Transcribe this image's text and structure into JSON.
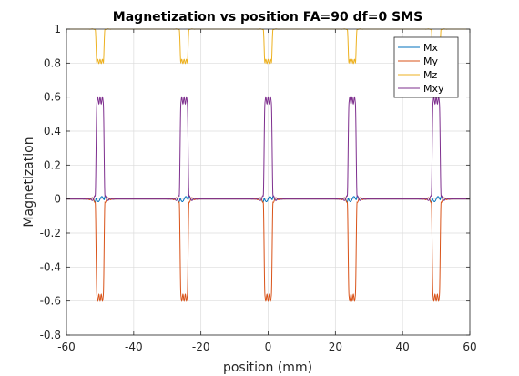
{
  "chart_data": {
    "type": "line",
    "title": "Magnetization vs position FA=90 df=0 SMS",
    "xlabel": "position (mm)",
    "ylabel": "Magnetization",
    "xlim": [
      -60,
      60
    ],
    "ylim": [
      -0.8,
      1
    ],
    "x_ticks": [
      -60,
      -40,
      -20,
      0,
      20,
      40,
      60
    ],
    "x_tick_labels": [
      "-60",
      "-40",
      "-20",
      "0",
      "20",
      "40",
      "60"
    ],
    "y_ticks": [
      -0.8,
      -0.6,
      -0.4,
      -0.2,
      0,
      0.2,
      0.4,
      0.6,
      0.8,
      1
    ],
    "y_tick_labels": [
      "-0.8",
      "-0.6",
      "-0.4",
      "-0.2",
      "0",
      "0.2",
      "0.4",
      "0.6",
      "0.8",
      "1"
    ],
    "grid": true,
    "legend_position": "top-right",
    "slice_centers": [
      -50,
      -25,
      0,
      25,
      50
    ],
    "slice_halfwidth": 1.2,
    "series": [
      {
        "name": "Mx",
        "color": "#0072BD",
        "in_slice_value": 0.0,
        "edge_peak": 0.02
      },
      {
        "name": "My",
        "color": "#D95319",
        "in_slice_value": -0.58,
        "edge_peak": 0.03
      },
      {
        "name": "Mz",
        "color": "#EDB120",
        "in_slice_value": 0.81,
        "out_slice_value": 1.0
      },
      {
        "name": "Mxy",
        "color": "#7E2F8E",
        "in_slice_value": 0.58,
        "edge_peak": 0.03
      }
    ]
  }
}
